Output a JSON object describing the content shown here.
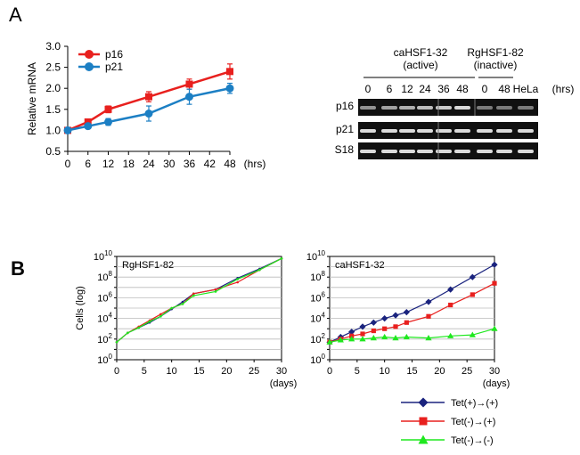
{
  "panel_a_label": "A",
  "panel_b_label": "B",
  "chart_data": [
    {
      "type": "line",
      "ylabel": "Relative mRNA",
      "xunit": "(hrs)",
      "x": [
        0,
        6,
        12,
        24,
        36,
        48
      ],
      "xticks": [
        "0",
        "6",
        "12",
        "18",
        "24",
        "30",
        "36",
        "42",
        "48"
      ],
      "xtick_values": [
        0,
        6,
        12,
        18,
        24,
        30,
        36,
        42,
        48
      ],
      "yticks": [
        "0.5",
        "1.0",
        "1.5",
        "2.0",
        "2.5",
        "3.0"
      ],
      "ytick_values": [
        0.5,
        1.0,
        1.5,
        2.0,
        2.5,
        3.0
      ],
      "ylim": [
        0.5,
        3.0
      ],
      "xlim": [
        0,
        48
      ],
      "legend_position": "top-left",
      "series": [
        {
          "name": "p16",
          "color": "#e8201e",
          "values": [
            1.0,
            1.2,
            1.5,
            1.8,
            2.1,
            2.4
          ],
          "errors": [
            0,
            0.05,
            0.08,
            0.12,
            0.12,
            0.18
          ]
        },
        {
          "name": "p21",
          "color": "#1c7fc4",
          "values": [
            1.0,
            1.1,
            1.2,
            1.4,
            1.8,
            2.0
          ],
          "errors": [
            0,
            0.05,
            0.08,
            0.18,
            0.18,
            0.12
          ]
        }
      ]
    },
    {
      "type": "line",
      "title": "RgHSF1-82",
      "ylabel": "Cells (log)",
      "xunit": "(days)",
      "y_scale": "log",
      "xticks": [
        "0",
        "5",
        "10",
        "15",
        "20",
        "25",
        "30"
      ],
      "xtick_values": [
        0,
        5,
        10,
        15,
        20,
        25,
        30
      ],
      "ytick_exponents": [
        0,
        2,
        4,
        6,
        8,
        10
      ],
      "ylim_exponent": [
        0,
        10
      ],
      "xlim": [
        0,
        30
      ],
      "grid": true,
      "series": [
        {
          "name": "Tet(+)→(+)",
          "color": "#1a237e",
          "x": [
            0,
            2,
            4,
            6,
            8,
            10,
            12,
            14,
            18,
            22,
            26,
            30
          ],
          "log10_values": [
            1.7,
            2.6,
            3.1,
            3.6,
            4.2,
            4.9,
            5.6,
            6.4,
            6.8,
            7.9,
            8.8,
            9.8
          ]
        },
        {
          "name": "Tet(-)→(+)",
          "color": "#e8201e",
          "x": [
            0,
            2,
            4,
            6,
            8,
            10,
            12,
            14,
            18,
            22,
            26,
            30
          ],
          "log10_values": [
            1.7,
            2.6,
            3.2,
            3.8,
            4.4,
            5.0,
            5.4,
            6.4,
            6.8,
            7.5,
            8.7,
            9.8
          ]
        },
        {
          "name": "Tet(-)→(-)",
          "color": "#1fe81f",
          "x": [
            0,
            2,
            4,
            6,
            8,
            10,
            12,
            14,
            18,
            22,
            26,
            30
          ],
          "log10_values": [
            1.7,
            2.6,
            3.1,
            3.7,
            4.2,
            5.0,
            5.4,
            6.2,
            6.6,
            7.8,
            8.7,
            9.8
          ]
        }
      ]
    },
    {
      "type": "line",
      "title": "caHSF1-32",
      "xunit": "(days)",
      "y_scale": "log",
      "xticks": [
        "0",
        "5",
        "10",
        "15",
        "20",
        "25",
        "30"
      ],
      "xtick_values": [
        0,
        5,
        10,
        15,
        20,
        25,
        30
      ],
      "ytick_exponents": [
        0,
        2,
        4,
        6,
        8,
        10
      ],
      "ylim_exponent": [
        0,
        10
      ],
      "xlim": [
        0,
        30
      ],
      "grid": true,
      "series": [
        {
          "name": "Tet(+)→(+)",
          "color": "#1a237e",
          "marker": "diamond",
          "x": [
            0,
            2,
            4,
            6,
            8,
            10,
            12,
            14,
            18,
            22,
            26,
            30
          ],
          "log10_values": [
            1.7,
            2.2,
            2.7,
            3.2,
            3.6,
            4.0,
            4.3,
            4.6,
            5.6,
            6.8,
            8.0,
            9.2
          ]
        },
        {
          "name": "Tet(-)→(+)",
          "color": "#e8201e",
          "marker": "square",
          "x": [
            0,
            2,
            4,
            6,
            8,
            10,
            12,
            14,
            18,
            22,
            26,
            30
          ],
          "log10_values": [
            1.7,
            2.0,
            2.3,
            2.5,
            2.8,
            3.0,
            3.2,
            3.6,
            4.2,
            5.3,
            6.3,
            7.4
          ]
        },
        {
          "name": "Tet(-)→(-)",
          "color": "#1fe81f",
          "marker": "triangle",
          "x": [
            0,
            2,
            4,
            6,
            8,
            10,
            12,
            14,
            18,
            22,
            26,
            30
          ],
          "log10_values": [
            1.7,
            1.9,
            2.0,
            2.0,
            2.1,
            2.2,
            2.1,
            2.2,
            2.1,
            2.3,
            2.4,
            3.0
          ]
        }
      ]
    }
  ],
  "blot": {
    "group1_label": "caHSF1-32",
    "group1_sub": "(active)",
    "group2_label": "RgHSF1-82",
    "group2_sub": "(inactive)",
    "lane_labels": [
      "0",
      "6",
      "12",
      "24",
      "36",
      "48",
      "0",
      "48",
      "HeLa"
    ],
    "unit": "(hrs)",
    "rows": [
      "p16",
      "p21",
      "S18"
    ]
  },
  "legend_b": [
    {
      "label": "Tet(+)→(+)",
      "color": "#1a237e",
      "marker": "diamond"
    },
    {
      "label": "Tet(-)→(+)",
      "color": "#e8201e",
      "marker": "square"
    },
    {
      "label": "Tet(-)→(-)",
      "color": "#1fe81f",
      "marker": "triangle"
    }
  ]
}
